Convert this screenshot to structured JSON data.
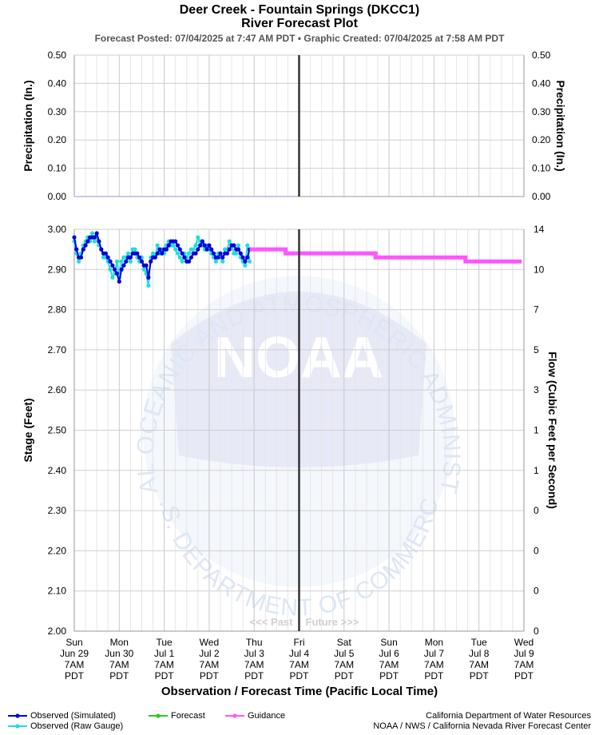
{
  "header": {
    "title": "Deer Creek - Fountain Springs (DKCC1)",
    "subtitle": "River Forecast Plot",
    "posted": "Forecast Posted: 07/04/2025 at 7:47 AM PDT  •  Graphic Created: 07/04/2025 at 7:58 AM PDT"
  },
  "watermark": {
    "logo": "NOAA",
    "ring_text": "NATIONAL OCEANIC AND ATMOSPHERIC ADMINISTRATION",
    "bottom_text": "U.S. DEPARTMENT OF COMMERCE",
    "color": "#dce6f5"
  },
  "footer": {
    "credit_line1": "California Department of Water Resources",
    "credit_line2": "NOAA / NWS / California Nevada River Forecast Center"
  },
  "chart_data": [
    {
      "type": "line",
      "panel": "precipitation",
      "ylabel_left": "Precipitation (In.)",
      "ylabel_right": "Precipitation (In.)",
      "ylim": [
        0,
        0.5
      ],
      "yticks": [
        "0.00",
        "0.10",
        "0.20",
        "0.30",
        "0.40",
        "0.50"
      ],
      "grid": true,
      "series": [
        {
          "name": "",
          "color": "#b0b8ff",
          "style": "dashed",
          "values": [
            [
              0,
              0
            ],
            [
              5,
              0
            ]
          ]
        }
      ]
    },
    {
      "type": "line",
      "panel": "stage",
      "xlabel": "Observation / Forecast Time (Pacific Local Time)",
      "ylabel_left": "Stage (Feet)",
      "ylabel_right": "Flow (Cubic Feet per Second)",
      "ylim": [
        2.0,
        3.0
      ],
      "yticks": [
        "2.00",
        "2.10",
        "2.20",
        "2.30",
        "2.40",
        "2.50",
        "2.60",
        "2.70",
        "2.80",
        "2.90",
        "3.00"
      ],
      "yticks_right": [
        "0",
        "0",
        "0",
        "0",
        "1",
        "1",
        "3",
        "5",
        "7",
        "10",
        "14"
      ],
      "x_day_labels": [
        [
          "Sun",
          "Jun 29",
          "7AM",
          "PDT"
        ],
        [
          "Mon",
          "Jun 30",
          "7AM",
          "PDT"
        ],
        [
          "Tue",
          "Jul 1",
          "7AM",
          "PDT"
        ],
        [
          "Wed",
          "Jul 2",
          "7AM",
          "PDT"
        ],
        [
          "Thu",
          "Jul 3",
          "7AM",
          "PDT"
        ],
        [
          "Fri",
          "Jul 4",
          "7AM",
          "PDT"
        ],
        [
          "Sat",
          "Jul 5",
          "7AM",
          "PDT"
        ],
        [
          "Sun",
          "Jul 6",
          "7AM",
          "PDT"
        ],
        [
          "Mon",
          "Jul 7",
          "7AM",
          "PDT"
        ],
        [
          "Tue",
          "Jul 8",
          "7AM",
          "PDT"
        ],
        [
          "Wed",
          "Jul 9",
          "7AM",
          "PDT"
        ]
      ],
      "now_day_index": 5,
      "past_label": "<<< Past",
      "future_label": "Future >>>",
      "grid": true,
      "series": [
        {
          "name": "Observed (Simulated)",
          "color": "#0000dd",
          "values": [
            [
              0,
              2.98
            ],
            [
              0.05,
              2.95
            ],
            [
              0.1,
              2.93
            ],
            [
              0.15,
              2.93
            ],
            [
              0.2,
              2.95
            ],
            [
              0.25,
              2.96
            ],
            [
              0.3,
              2.97
            ],
            [
              0.35,
              2.98
            ],
            [
              0.4,
              2.98
            ],
            [
              0.45,
              2.98
            ],
            [
              0.5,
              2.99
            ],
            [
              0.55,
              2.97
            ],
            [
              0.6,
              2.95
            ],
            [
              0.65,
              2.94
            ],
            [
              0.7,
              2.94
            ],
            [
              0.75,
              2.93
            ],
            [
              0.8,
              2.92
            ],
            [
              0.85,
              2.91
            ],
            [
              0.9,
              2.9
            ],
            [
              0.95,
              2.89
            ],
            [
              1.0,
              2.87
            ],
            [
              1.05,
              2.9
            ],
            [
              1.1,
              2.91
            ],
            [
              1.15,
              2.92
            ],
            [
              1.2,
              2.93
            ],
            [
              1.25,
              2.93
            ],
            [
              1.3,
              2.94
            ],
            [
              1.35,
              2.94
            ],
            [
              1.4,
              2.94
            ],
            [
              1.45,
              2.93
            ],
            [
              1.5,
              2.92
            ],
            [
              1.55,
              2.91
            ],
            [
              1.6,
              2.91
            ],
            [
              1.65,
              2.88
            ],
            [
              1.7,
              2.92
            ],
            [
              1.75,
              2.93
            ],
            [
              1.8,
              2.93
            ],
            [
              1.85,
              2.94
            ],
            [
              1.9,
              2.95
            ],
            [
              1.95,
              2.94
            ],
            [
              2.0,
              2.95
            ],
            [
              2.05,
              2.95
            ],
            [
              2.1,
              2.96
            ],
            [
              2.15,
              2.97
            ],
            [
              2.2,
              2.97
            ],
            [
              2.25,
              2.97
            ],
            [
              2.3,
              2.96
            ],
            [
              2.35,
              2.95
            ],
            [
              2.4,
              2.94
            ],
            [
              2.45,
              2.93
            ],
            [
              2.5,
              2.92
            ],
            [
              2.55,
              2.92
            ],
            [
              2.6,
              2.93
            ],
            [
              2.65,
              2.94
            ],
            [
              2.7,
              2.94
            ],
            [
              2.75,
              2.95
            ],
            [
              2.8,
              2.96
            ],
            [
              2.85,
              2.97
            ],
            [
              2.9,
              2.96
            ],
            [
              2.95,
              2.95
            ],
            [
              3.0,
              2.96
            ],
            [
              3.05,
              2.95
            ],
            [
              3.1,
              2.94
            ],
            [
              3.15,
              2.93
            ],
            [
              3.2,
              2.93
            ],
            [
              3.25,
              2.94
            ],
            [
              3.3,
              2.93
            ],
            [
              3.35,
              2.94
            ],
            [
              3.4,
              2.94
            ],
            [
              3.45,
              2.95
            ],
            [
              3.5,
              2.96
            ],
            [
              3.55,
              2.96
            ],
            [
              3.6,
              2.95
            ],
            [
              3.65,
              2.95
            ],
            [
              3.7,
              2.94
            ],
            [
              3.75,
              2.93
            ],
            [
              3.8,
              2.92
            ],
            [
              3.85,
              2.93
            ],
            [
              3.9,
              2.95
            ]
          ]
        },
        {
          "name": "Observed (Raw Gauge)",
          "color": "#22dddd",
          "values": [
            [
              0,
              2.97
            ],
            [
              0.05,
              2.94
            ],
            [
              0.1,
              2.92
            ],
            [
              0.15,
              2.94
            ],
            [
              0.2,
              2.96
            ],
            [
              0.25,
              2.97
            ],
            [
              0.3,
              2.98
            ],
            [
              0.35,
              2.97
            ],
            [
              0.4,
              2.99
            ],
            [
              0.45,
              2.97
            ],
            [
              0.5,
              2.98
            ],
            [
              0.55,
              2.96
            ],
            [
              0.6,
              2.95
            ],
            [
              0.65,
              2.93
            ],
            [
              0.7,
              2.93
            ],
            [
              0.75,
              2.92
            ],
            [
              0.8,
              2.9
            ],
            [
              0.85,
              2.88
            ],
            [
              0.9,
              2.89
            ],
            [
              0.95,
              2.92
            ],
            [
              1.0,
              2.88
            ],
            [
              1.05,
              2.92
            ],
            [
              1.1,
              2.93
            ],
            [
              1.15,
              2.93
            ],
            [
              1.2,
              2.94
            ],
            [
              1.25,
              2.92
            ],
            [
              1.3,
              2.95
            ],
            [
              1.35,
              2.95
            ],
            [
              1.4,
              2.93
            ],
            [
              1.45,
              2.92
            ],
            [
              1.5,
              2.93
            ],
            [
              1.55,
              2.9
            ],
            [
              1.6,
              2.89
            ],
            [
              1.65,
              2.86
            ],
            [
              1.7,
              2.93
            ],
            [
              1.75,
              2.94
            ],
            [
              1.8,
              2.93
            ],
            [
              1.85,
              2.96
            ],
            [
              1.9,
              2.94
            ],
            [
              1.95,
              2.95
            ],
            [
              2.0,
              2.94
            ],
            [
              2.05,
              2.96
            ],
            [
              2.1,
              2.97
            ],
            [
              2.15,
              2.96
            ],
            [
              2.2,
              2.96
            ],
            [
              2.25,
              2.95
            ],
            [
              2.3,
              2.94
            ],
            [
              2.35,
              2.93
            ],
            [
              2.4,
              2.92
            ],
            [
              2.45,
              2.94
            ],
            [
              2.5,
              2.93
            ],
            [
              2.55,
              2.94
            ],
            [
              2.6,
              2.95
            ],
            [
              2.65,
              2.95
            ],
            [
              2.7,
              2.96
            ],
            [
              2.75,
              2.98
            ],
            [
              2.8,
              2.97
            ],
            [
              2.85,
              2.96
            ],
            [
              2.9,
              2.95
            ],
            [
              2.95,
              2.96
            ],
            [
              3.0,
              2.95
            ],
            [
              3.05,
              2.94
            ],
            [
              3.1,
              2.93
            ],
            [
              3.15,
              2.92
            ],
            [
              3.2,
              2.94
            ],
            [
              3.25,
              2.93
            ],
            [
              3.3,
              2.92
            ],
            [
              3.35,
              2.95
            ],
            [
              3.4,
              2.95
            ],
            [
              3.45,
              2.97
            ],
            [
              3.5,
              2.96
            ],
            [
              3.55,
              2.94
            ],
            [
              3.6,
              2.94
            ],
            [
              3.65,
              2.96
            ],
            [
              3.7,
              2.93
            ],
            [
              3.75,
              2.92
            ],
            [
              3.8,
              2.91
            ],
            [
              3.85,
              2.96
            ],
            [
              3.9,
              2.92
            ]
          ]
        },
        {
          "name": "Forecast",
          "color": "#22cc22",
          "values": []
        },
        {
          "name": "Guidance",
          "color": "#ff55ff",
          "values": [
            [
              3.9,
              2.95
            ],
            [
              4.7,
              2.95
            ],
            [
              4.7,
              2.94
            ],
            [
              6.7,
              2.94
            ],
            [
              6.7,
              2.93
            ],
            [
              8.7,
              2.93
            ],
            [
              8.7,
              2.92
            ],
            [
              9.95,
              2.92
            ]
          ]
        }
      ]
    }
  ]
}
